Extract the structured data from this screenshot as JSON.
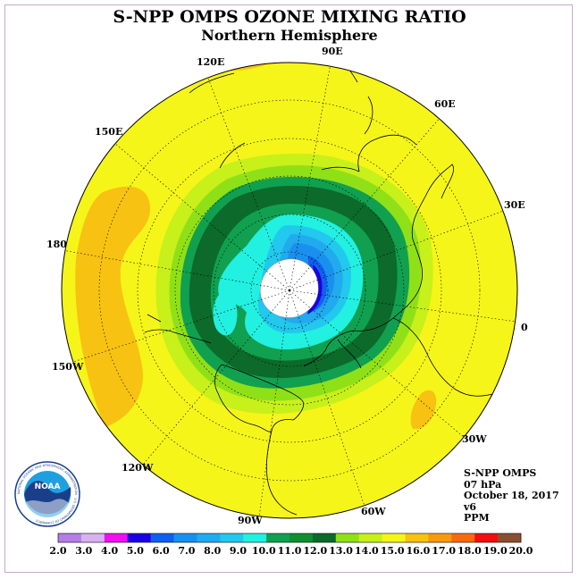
{
  "title": "S-NPP OMPS OZONE MIXING RATIO",
  "subtitle": "Northern Hemisphere",
  "longitude_labels": {
    "lon_120e": "120E",
    "lon_90e": "90E",
    "lon_60e": "60E",
    "lon_30e": "30E",
    "lon_0": "0",
    "lon_30w": "30W",
    "lon_60w": "60W",
    "lon_90w": "90W",
    "lon_120w": "120W",
    "lon_150w": "150W",
    "lon_180": "180",
    "lon_150e": "150E"
  },
  "info": {
    "instrument": "S-NPP OMPS",
    "level": "07 hPa",
    "date": "October 18, 2017",
    "version": "v6",
    "units": "PPM"
  },
  "logo": {
    "text": "NOAA",
    "ring_text": "NATIONAL OCEANIC AND ATMOSPHERIC ADMINISTRATION · U.S. DEPARTMENT OF COMMERCE"
  },
  "colorbar": {
    "ticks": [
      "2.0",
      "3.0",
      "4.0",
      "5.0",
      "6.0",
      "7.0",
      "8.0",
      "9.0",
      "10.0",
      "11.0",
      "12.0",
      "13.0",
      "14.0",
      "15.0",
      "16.0",
      "17.0",
      "18.0",
      "19.0",
      "20.0"
    ],
    "colors": [
      "#b57ee6",
      "#d8b2f0",
      "#ee11ee",
      "#1a00e0",
      "#1060f0",
      "#1a90ee",
      "#22aaee",
      "#22c8ee",
      "#22f0e0",
      "#10a050",
      "#109030",
      "#0c6a2a",
      "#90e018",
      "#c8f01a",
      "#f5f51a",
      "#f8c212",
      "#f89a10",
      "#f86a10",
      "#f01010",
      "#8a5030"
    ]
  }
}
